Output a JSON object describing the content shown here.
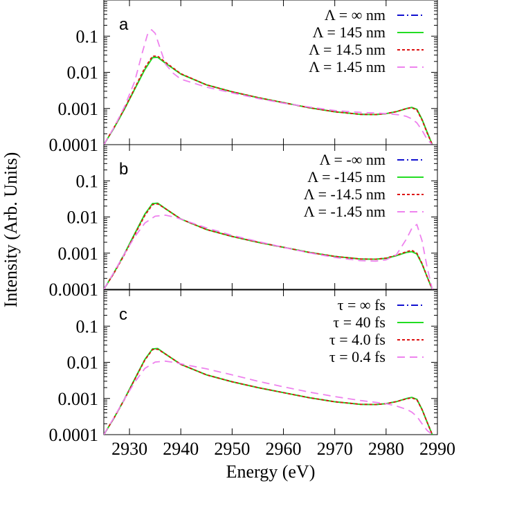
{
  "colors": {
    "infinite": "#1010d0",
    "large": "#22dd22",
    "medium": "#dd1010",
    "small": "#ee82ee",
    "axis": "#000000"
  },
  "chart_data": [
    {
      "type": "line",
      "panel_label": "a",
      "xlim": [
        2925,
        2990
      ],
      "ylim": [
        0.0001,
        1
      ],
      "yscale": "log",
      "grid": false,
      "legend_position": "top-right",
      "xticks": [
        "2930",
        "2940",
        "2950",
        "2960",
        "2970",
        "2980",
        "2990"
      ],
      "yticks": [
        "0.0001",
        "0.001",
        "0.01",
        "0.1"
      ],
      "series": [
        {
          "name": "Λ = ∞ nm",
          "style": "dash-dot",
          "color_key": "infinite",
          "x": [
            2925,
            2927,
            2929,
            2931,
            2933,
            2934.5,
            2935.5,
            2937,
            2940,
            2945,
            2950,
            2955,
            2960,
            2965,
            2970,
            2975,
            2978,
            2980,
            2982,
            2984,
            2985,
            2986,
            2987,
            2988,
            2989
          ],
          "y": [
            0.0001,
            0.00029,
            0.00095,
            0.0034,
            0.012,
            0.0255,
            0.026,
            0.018,
            0.009,
            0.0045,
            0.0029,
            0.002,
            0.00145,
            0.00105,
            0.00081,
            0.00069,
            0.00068,
            0.00072,
            0.00082,
            0.001,
            0.00107,
            0.00095,
            0.0005,
            0.00022,
            0.0001
          ]
        },
        {
          "name": "Λ = 145 nm",
          "style": "solid",
          "color_key": "large",
          "x": [
            2925,
            2927,
            2929,
            2931,
            2933,
            2934.5,
            2935.5,
            2937,
            2940,
            2945,
            2950,
            2955,
            2960,
            2965,
            2970,
            2975,
            2978,
            2980,
            2982,
            2984,
            2985,
            2986,
            2987,
            2988,
            2989
          ],
          "y": [
            0.0001,
            0.00029,
            0.00095,
            0.0034,
            0.012,
            0.0255,
            0.026,
            0.018,
            0.009,
            0.0045,
            0.0029,
            0.002,
            0.00145,
            0.00105,
            0.00081,
            0.00069,
            0.00068,
            0.00072,
            0.00082,
            0.001,
            0.00107,
            0.00095,
            0.0005,
            0.00022,
            0.0001
          ]
        },
        {
          "name": "Λ = 14.5 nm",
          "style": "dotted",
          "color_key": "medium",
          "x": [
            2925,
            2927,
            2929,
            2931,
            2933,
            2934.5,
            2935.5,
            2937,
            2940,
            2945,
            2950,
            2955,
            2960,
            2965,
            2970,
            2975,
            2978,
            2980,
            2982,
            2984,
            2985,
            2986,
            2987,
            2988,
            2989
          ],
          "y": [
            0.0001,
            0.0003,
            0.00098,
            0.0036,
            0.0135,
            0.028,
            0.028,
            0.019,
            0.0092,
            0.0045,
            0.0029,
            0.002,
            0.00145,
            0.00105,
            0.00081,
            0.00069,
            0.00068,
            0.00072,
            0.00082,
            0.001,
            0.00105,
            0.0009,
            0.00048,
            0.00021,
            0.0001
          ]
        },
        {
          "name": "Λ = 1.45 nm",
          "style": "dashed",
          "color_key": "small",
          "x": [
            2925,
            2927,
            2929,
            2931,
            2932.5,
            2933.5,
            2934.3,
            2935,
            2936,
            2937,
            2938.5,
            2940,
            2945,
            2950,
            2955,
            2960,
            2965,
            2970,
            2975,
            2978,
            2980,
            2982,
            2983,
            2984,
            2985,
            2986,
            2987,
            2988,
            2989
          ],
          "y": [
            0.0001,
            0.0003,
            0.0011,
            0.0055,
            0.035,
            0.11,
            0.15,
            0.12,
            0.045,
            0.017,
            0.0095,
            0.0065,
            0.0039,
            0.0027,
            0.0019,
            0.0014,
            0.0011,
            0.00088,
            0.00078,
            0.00075,
            0.00072,
            0.00068,
            0.00065,
            0.0006,
            0.00052,
            0.0004,
            0.00025,
            0.00014,
            0.0001
          ]
        }
      ]
    },
    {
      "type": "line",
      "panel_label": "b",
      "xlim": [
        2925,
        2990
      ],
      "ylim": [
        0.0001,
        1
      ],
      "yscale": "log",
      "grid": false,
      "legend_position": "top-right",
      "xticks": [
        "2930",
        "2940",
        "2950",
        "2960",
        "2970",
        "2980",
        "2990"
      ],
      "yticks": [
        "0.0001",
        "0.001",
        "0.01",
        "0.1"
      ],
      "series": [
        {
          "name": "Λ = -∞ nm",
          "style": "dash-dot",
          "color_key": "infinite",
          "x": [
            2925,
            2927,
            2929,
            2931,
            2933,
            2934.5,
            2935.5,
            2937,
            2940,
            2945,
            2950,
            2955,
            2960,
            2965,
            2970,
            2975,
            2978,
            2980,
            2982,
            2984,
            2985,
            2986,
            2987,
            2988,
            2989
          ],
          "y": [
            0.0001,
            0.00029,
            0.00095,
            0.0034,
            0.012,
            0.0235,
            0.024,
            0.017,
            0.0088,
            0.0045,
            0.0029,
            0.002,
            0.00145,
            0.00105,
            0.00081,
            0.00069,
            0.00068,
            0.00072,
            0.00085,
            0.00105,
            0.0011,
            0.00095,
            0.0005,
            0.00022,
            0.0001
          ]
        },
        {
          "name": "Λ = -145 nm",
          "style": "solid",
          "color_key": "large",
          "x": [
            2925,
            2927,
            2929,
            2931,
            2933,
            2934.5,
            2935.5,
            2937,
            2940,
            2945,
            2950,
            2955,
            2960,
            2965,
            2970,
            2975,
            2978,
            2980,
            2982,
            2984,
            2985,
            2986,
            2987,
            2988,
            2989
          ],
          "y": [
            0.0001,
            0.00029,
            0.00095,
            0.0034,
            0.012,
            0.0235,
            0.024,
            0.017,
            0.0088,
            0.0045,
            0.0029,
            0.002,
            0.00145,
            0.00105,
            0.00081,
            0.00069,
            0.00068,
            0.00072,
            0.00085,
            0.00105,
            0.0011,
            0.00095,
            0.0005,
            0.00022,
            0.0001
          ]
        },
        {
          "name": "Λ = -14.5 nm",
          "style": "dotted",
          "color_key": "medium",
          "x": [
            2925,
            2927,
            2929,
            2931,
            2933,
            2934.5,
            2935.5,
            2937,
            2940,
            2945,
            2950,
            2955,
            2960,
            2965,
            2970,
            2975,
            2978,
            2980,
            2982,
            2984,
            2985,
            2986,
            2987,
            2988,
            2989
          ],
          "y": [
            0.0001,
            0.00028,
            0.0009,
            0.0032,
            0.011,
            0.022,
            0.023,
            0.017,
            0.0088,
            0.0045,
            0.0029,
            0.002,
            0.00145,
            0.00105,
            0.00081,
            0.00069,
            0.00068,
            0.00073,
            0.00088,
            0.0011,
            0.0012,
            0.001,
            0.00052,
            0.00022,
            0.0001
          ]
        },
        {
          "name": "Λ = -1.45 nm",
          "style": "dashed",
          "color_key": "small",
          "x": [
            2925,
            2927,
            2929,
            2931,
            2933,
            2935,
            2937,
            2939,
            2941,
            2945,
            2950,
            2955,
            2960,
            2965,
            2970,
            2975,
            2978,
            2980,
            2982,
            2984,
            2985,
            2986,
            2987,
            2988,
            2989
          ],
          "y": [
            0.0001,
            0.0003,
            0.00095,
            0.0028,
            0.0068,
            0.0105,
            0.0112,
            0.0098,
            0.0078,
            0.005,
            0.0031,
            0.0021,
            0.00145,
            0.00102,
            0.00076,
            0.00062,
            0.0006,
            0.00065,
            0.0009,
            0.0025,
            0.0048,
            0.0062,
            0.0022,
            0.0004,
            0.0001
          ]
        }
      ]
    },
    {
      "type": "line",
      "panel_label": "c",
      "xlim": [
        2925,
        2990
      ],
      "ylim": [
        0.0001,
        1
      ],
      "yscale": "log",
      "grid": false,
      "legend_position": "top-right",
      "xticks": [
        "2930",
        "2940",
        "2950",
        "2960",
        "2970",
        "2980",
        "2990"
      ],
      "yticks": [
        "0.0001",
        "0.001",
        "0.01",
        "0.1"
      ],
      "series": [
        {
          "name": "τ = ∞ fs",
          "style": "dash-dot",
          "color_key": "infinite",
          "x": [
            2925,
            2927,
            2929,
            2931,
            2933,
            2934.5,
            2935.5,
            2937,
            2940,
            2945,
            2950,
            2955,
            2960,
            2965,
            2970,
            2975,
            2978,
            2980,
            2982,
            2984,
            2985,
            2986,
            2987,
            2988,
            2989
          ],
          "y": [
            0.0001,
            0.00029,
            0.00095,
            0.0034,
            0.012,
            0.0235,
            0.024,
            0.017,
            0.0088,
            0.0045,
            0.0029,
            0.002,
            0.00145,
            0.00105,
            0.00081,
            0.00069,
            0.00068,
            0.00072,
            0.00082,
            0.001,
            0.00107,
            0.00095,
            0.0005,
            0.00022,
            0.0001
          ]
        },
        {
          "name": "τ = 40 fs",
          "style": "solid",
          "color_key": "large",
          "x": [
            2925,
            2927,
            2929,
            2931,
            2933,
            2934.5,
            2935.5,
            2937,
            2940,
            2945,
            2950,
            2955,
            2960,
            2965,
            2970,
            2975,
            2978,
            2980,
            2982,
            2984,
            2985,
            2986,
            2987,
            2988,
            2989
          ],
          "y": [
            0.0001,
            0.00029,
            0.00095,
            0.0034,
            0.012,
            0.0235,
            0.024,
            0.017,
            0.0088,
            0.0045,
            0.0029,
            0.002,
            0.00145,
            0.00105,
            0.00081,
            0.00069,
            0.00068,
            0.00072,
            0.00082,
            0.001,
            0.00107,
            0.00095,
            0.0005,
            0.00022,
            0.0001
          ]
        },
        {
          "name": "τ = 4.0 fs",
          "style": "dotted",
          "color_key": "medium",
          "x": [
            2925,
            2927,
            2929,
            2931,
            2933,
            2934.5,
            2935.5,
            2937,
            2940,
            2945,
            2950,
            2955,
            2960,
            2965,
            2970,
            2975,
            2978,
            2980,
            2982,
            2984,
            2985,
            2986,
            2987,
            2988,
            2989
          ],
          "y": [
            0.0001,
            0.00029,
            0.00093,
            0.0033,
            0.0115,
            0.0225,
            0.023,
            0.017,
            0.0088,
            0.0045,
            0.0029,
            0.002,
            0.00145,
            0.00105,
            0.00081,
            0.00069,
            0.00068,
            0.00072,
            0.00082,
            0.00098,
            0.00104,
            0.00092,
            0.00049,
            0.00022,
            0.0001
          ]
        },
        {
          "name": "τ = 0.4 fs",
          "style": "dashed",
          "color_key": "small",
          "x": [
            2925,
            2927,
            2929,
            2931,
            2933,
            2935,
            2937,
            2939,
            2941,
            2945,
            2950,
            2955,
            2960,
            2965,
            2970,
            2975,
            2978,
            2980,
            2982,
            2984,
            2985,
            2986,
            2987,
            2988,
            2989
          ],
          "y": [
            0.0001,
            0.0003,
            0.00095,
            0.0028,
            0.0068,
            0.0102,
            0.0108,
            0.0098,
            0.0085,
            0.0066,
            0.0045,
            0.003,
            0.0021,
            0.0015,
            0.00113,
            0.00088,
            0.00078,
            0.00072,
            0.00062,
            0.0005,
            0.00042,
            0.00032,
            0.0002,
            0.00013,
            0.0001
          ]
        }
      ]
    }
  ],
  "axes": {
    "xlabel": "Energy (eV)",
    "ylabel": "Intensity (Arb. Units)"
  }
}
